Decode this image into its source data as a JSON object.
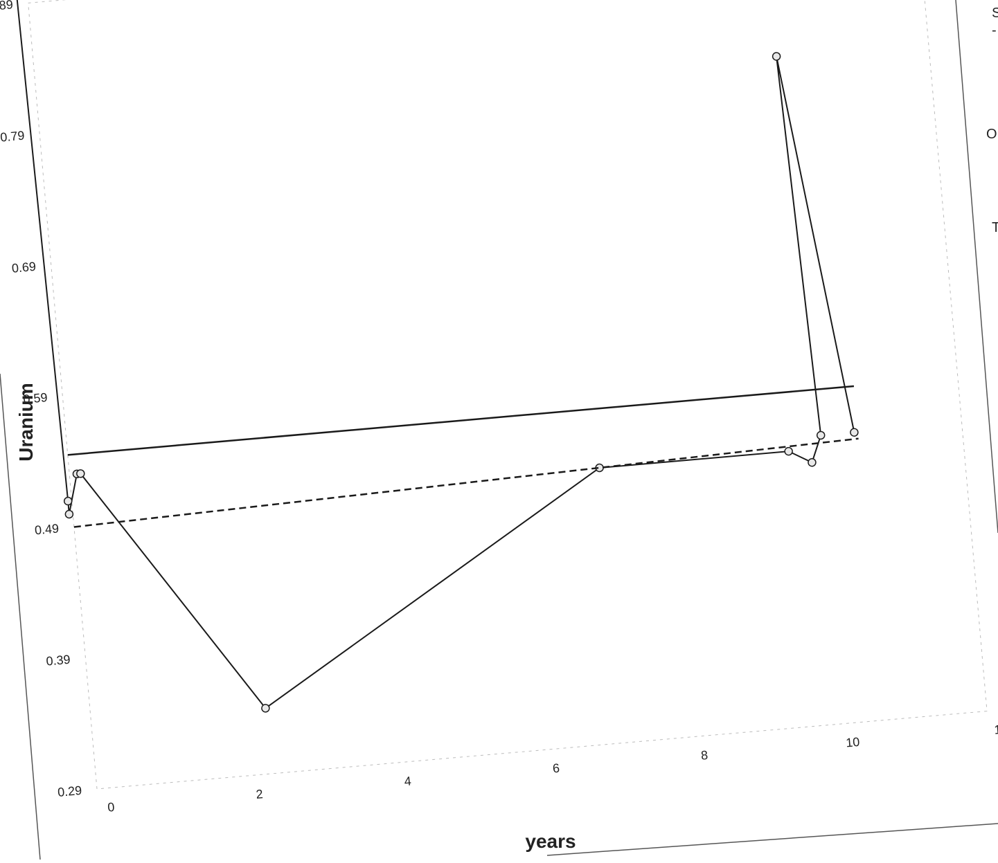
{
  "chart_data": {
    "type": "line",
    "xlabel": "years",
    "ylabel": "Uranium",
    "xlim": [
      0,
      12
    ],
    "ylim": [
      0.29,
      0.89
    ],
    "x_ticks": [
      "0",
      "2",
      "4",
      "6",
      "8",
      "10",
      "12"
    ],
    "y_ticks": [
      "0.29",
      "0.39",
      "0.49",
      "0.59",
      "0.69",
      "0.79",
      "0.89"
    ],
    "grid": false,
    "series": [
      {
        "style": "solid-markers",
        "x": [
          -0.15,
          -0.05,
          -0.05,
          0.1,
          0.15,
          2.35,
          7.1,
          9.65,
          9.95,
          10.1,
          9.95,
          10.55
        ],
        "y": [
          0.92,
          0.51,
          0.5,
          0.53,
          0.53,
          0.34,
          0.5,
          0.5,
          0.49,
          0.51,
          0.8,
          0.51
        ]
      },
      {
        "style": "solid-horizontal",
        "x": [
          0.0,
          10.6
        ],
        "y": [
          0.545,
          0.545
        ]
      },
      {
        "style": "dashed",
        "x": [
          0.0,
          10.6
        ],
        "y": [
          0.49,
          0.505
        ]
      }
    ],
    "edge_text": [
      "S",
      "-",
      "O",
      "T"
    ]
  }
}
